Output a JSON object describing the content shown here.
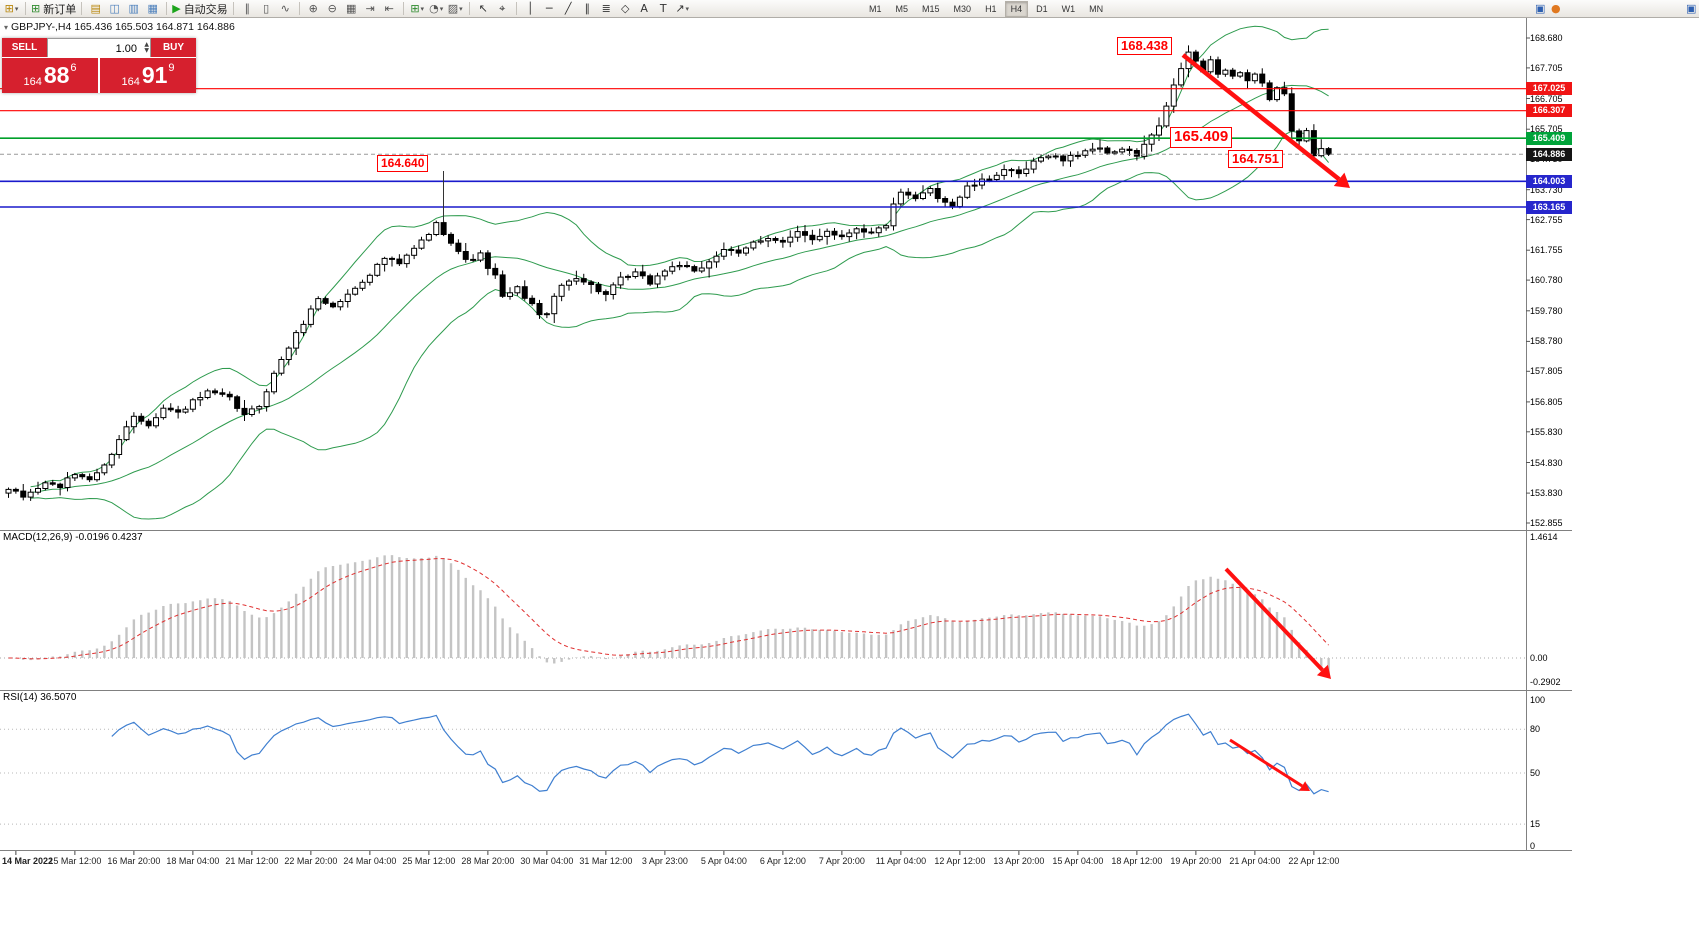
{
  "colors": {
    "one_click_red": "#d6202e",
    "annotation_red": "#ff0000",
    "level_red": "#ff0000",
    "level_green": "#00a02a",
    "level_blue": "#1a1acc",
    "bollinger_green": "#2e9b4e",
    "rsi_blue": "#3f7fd0",
    "macd_signal_red": "#e03030",
    "macd_histogram": "#c4c4c4",
    "arrow_red": "#ff1010",
    "tag_green": "#00a33a",
    "tag_blue": "#2626cc",
    "tag_red": "#f01414",
    "tag_black": "#141414"
  },
  "toolbar": {
    "groups": [
      {
        "items": [
          {
            "name": "new-chart",
            "glyph": "⊞",
            "color": "#b8860b",
            "caret": true
          }
        ]
      },
      {
        "items": [
          {
            "name": "new-order",
            "glyph": "⊞",
            "color": "#2e8b2e",
            "label": "新订单"
          }
        ]
      },
      {
        "items": [
          {
            "name": "market-watch",
            "glyph": "▤",
            "color": "#b8860b"
          },
          {
            "name": "data-window",
            "glyph": "◫",
            "color": "#4a7ebb"
          },
          {
            "name": "navigator",
            "glyph": "▥",
            "color": "#4a7ebb"
          },
          {
            "name": "terminal",
            "glyph": "▦",
            "color": "#4a7ebb"
          }
        ]
      },
      {
        "items": [
          {
            "name": "autotrading",
            "glyph": "▶",
            "color": "#1ca41c",
            "label": "自动交易"
          }
        ]
      },
      {
        "items": [
          {
            "name": "bar-chart",
            "glyph": "∥",
            "color": "#555555"
          },
          {
            "name": "candlestick-chart",
            "glyph": "▯",
            "color": "#555555"
          },
          {
            "name": "line-chart",
            "glyph": "∿",
            "color": "#555555"
          }
        ]
      },
      {
        "items": [
          {
            "name": "zoom-in",
            "glyph": "⊕",
            "color": "#555555"
          },
          {
            "name": "zoom-out",
            "glyph": "⊖",
            "color": "#555555"
          },
          {
            "name": "tile-windows",
            "glyph": "▦",
            "color": "#555555"
          },
          {
            "name": "auto-scroll",
            "glyph": "⇥",
            "color": "#555555"
          },
          {
            "name": "chart-shift",
            "glyph": "⇤",
            "color": "#555555"
          }
        ]
      },
      {
        "items": [
          {
            "name": "indicators",
            "glyph": "⊞",
            "color": "#2e8b2e",
            "caret": true
          },
          {
            "name": "periods",
            "glyph": "◔",
            "color": "#555555",
            "caret": true
          },
          {
            "name": "templates",
            "glyph": "▨",
            "color": "#555555",
            "caret": true
          }
        ]
      },
      {
        "items": [
          {
            "name": "cursor",
            "glyph": "↖",
            "color": "#333333"
          },
          {
            "name": "crosshair",
            "glyph": "⌖",
            "color": "#333333"
          }
        ]
      },
      {
        "items": [
          {
            "name": "vertical-line",
            "glyph": "│",
            "color": "#333333"
          },
          {
            "name": "horizontal-line",
            "glyph": "─",
            "color": "#333333"
          },
          {
            "name": "trendline",
            "glyph": "╱",
            "color": "#333333"
          },
          {
            "name": "equidistant-channel",
            "glyph": "∥",
            "color": "#333333"
          },
          {
            "name": "fibonacci-retracement",
            "glyph": "≣",
            "color": "#333333"
          },
          {
            "name": "shapes",
            "glyph": "◇",
            "color": "#333333"
          },
          {
            "name": "text",
            "glyph": "A",
            "color": "#333333"
          },
          {
            "name": "text-label",
            "glyph": "T",
            "color": "#333333"
          },
          {
            "name": "arrows",
            "glyph": "↗",
            "color": "#333333",
            "caret": true
          }
        ]
      }
    ],
    "timeframes": [
      "M1",
      "M5",
      "M15",
      "M30",
      "H1",
      "H4",
      "D1",
      "W1",
      "MN"
    ],
    "active_timeframe": "H4",
    "right_icons": [
      {
        "name": "metaeditor",
        "glyph": "▣",
        "color": "#2d5fb0"
      },
      {
        "name": "alert",
        "glyph": "●",
        "color": "#e07820"
      },
      {
        "name": "window-badge",
        "glyph": "▣",
        "color": "#2d5fb0"
      }
    ]
  },
  "symbol_bar": {
    "marker": "▾",
    "text": "GBPJPY-,H4 165.436 165.503 164.871 164.886"
  },
  "one_click": {
    "sell_label": "SELL",
    "buy_label": "BUY",
    "volume": "1.00",
    "sell_price_int": "164",
    "sell_price_big": "88",
    "sell_price_pip": "6",
    "buy_price_int": "164",
    "buy_price_big": "91",
    "buy_price_pip": "9"
  },
  "indicators": {
    "macd": {
      "label": "MACD(12,26,9)",
      "values": "-0.0196 0.4237",
      "axis": [
        "1.4614",
        "0.00",
        "-0.2902"
      ]
    },
    "rsi": {
      "label": "RSI(14)",
      "value": "36.5070",
      "axis": [
        "100",
        "80",
        "50",
        "15",
        "0"
      ],
      "levels": [
        80,
        50,
        15
      ]
    }
  },
  "chart_data": {
    "type": "candlestick",
    "symbol": "GBPJPY-",
    "timeframe": "H4",
    "current_bar_ohlc": {
      "open": 165.436,
      "high": 165.503,
      "low": 164.871,
      "close": 164.886
    },
    "ylim": [
      152.855,
      168.68
    ],
    "bars": 180,
    "last_close": 164.886,
    "peak": {
      "bar": 160,
      "high": 168.438
    },
    "price_anchors": [
      [
        0,
        153.95
      ],
      [
        2,
        153.7
      ],
      [
        5,
        154.15
      ],
      [
        7,
        154.05
      ],
      [
        9,
        154.45
      ],
      [
        11,
        154.3
      ],
      [
        13,
        154.7
      ],
      [
        15,
        155.6
      ],
      [
        17,
        156.35
      ],
      [
        19,
        156.1
      ],
      [
        21,
        156.6
      ],
      [
        23,
        156.45
      ],
      [
        25,
        156.8
      ],
      [
        27,
        157.1
      ],
      [
        29,
        157.0
      ],
      [
        30,
        156.9
      ],
      [
        32,
        156.35
      ],
      [
        34,
        156.7
      ],
      [
        35,
        157.2
      ],
      [
        37,
        158.2
      ],
      [
        39,
        159.0
      ],
      [
        41,
        159.8
      ],
      [
        42,
        160.2
      ],
      [
        44,
        159.9
      ],
      [
        46,
        160.3
      ],
      [
        49,
        161.0
      ],
      [
        51,
        161.5
      ],
      [
        53,
        161.3
      ],
      [
        55,
        161.8
      ],
      [
        57,
        162.3
      ],
      [
        58,
        162.6
      ],
      [
        59,
        162.35
      ],
      [
        60,
        162.05
      ],
      [
        62,
        161.4
      ],
      [
        64,
        161.6
      ],
      [
        65,
        161.2
      ],
      [
        66,
        160.9
      ],
      [
        67,
        160.2
      ],
      [
        69,
        160.5
      ],
      [
        71,
        160.0
      ],
      [
        72,
        159.6
      ],
      [
        73,
        159.75
      ],
      [
        75,
        160.6
      ],
      [
        77,
        160.9
      ],
      [
        79,
        160.6
      ],
      [
        81,
        160.3
      ],
      [
        83,
        160.8
      ],
      [
        85,
        161.0
      ],
      [
        87,
        160.7
      ],
      [
        89,
        161.1
      ],
      [
        91,
        161.3
      ],
      [
        93,
        161.0
      ],
      [
        95,
        161.4
      ],
      [
        97,
        161.8
      ],
      [
        99,
        161.6
      ],
      [
        101,
        162.0
      ],
      [
        103,
        162.2
      ],
      [
        105,
        162.0
      ],
      [
        107,
        162.3
      ],
      [
        109,
        162.1
      ],
      [
        111,
        162.4
      ],
      [
        113,
        162.2
      ],
      [
        115,
        162.5
      ],
      [
        117,
        162.3
      ],
      [
        119,
        162.6
      ],
      [
        120,
        163.2
      ],
      [
        121,
        163.6
      ],
      [
        123,
        163.4
      ],
      [
        125,
        163.8
      ],
      [
        126,
        163.5
      ],
      [
        128,
        163.2
      ],
      [
        130,
        163.8
      ],
      [
        133,
        164.1
      ],
      [
        135,
        164.4
      ],
      [
        137,
        164.2
      ],
      [
        139,
        164.6
      ],
      [
        141,
        164.9
      ],
      [
        143,
        164.7
      ],
      [
        145,
        164.9
      ],
      [
        147,
        165.1
      ],
      [
        149,
        164.95
      ],
      [
        151,
        165.05
      ],
      [
        153,
        164.85
      ],
      [
        155,
        165.5
      ],
      [
        156,
        165.8
      ],
      [
        157,
        166.4
      ],
      [
        158,
        167.1
      ],
      [
        159,
        167.7
      ],
      [
        160,
        168.2
      ],
      [
        161,
        167.9
      ],
      [
        162,
        167.6
      ],
      [
        163,
        167.9
      ],
      [
        164,
        167.5
      ],
      [
        165,
        167.7
      ],
      [
        166,
        167.4
      ],
      [
        167,
        167.6
      ],
      [
        168,
        167.3
      ],
      [
        169,
        167.5
      ],
      [
        170,
        167.2
      ],
      [
        171,
        166.6
      ],
      [
        172,
        167.0
      ],
      [
        173,
        166.8
      ],
      [
        174,
        165.7
      ],
      [
        175,
        165.3
      ],
      [
        176,
        165.6
      ],
      [
        177,
        164.9
      ],
      [
        178,
        165.15
      ],
      [
        179,
        164.886
      ]
    ],
    "price_axis_labels": [
      "168.680",
      "167.705",
      "166.705",
      "165.705",
      "164.730",
      "163.730",
      "162.755",
      "161.755",
      "160.780",
      "159.780",
      "158.780",
      "157.805",
      "156.805",
      "155.830",
      "154.830",
      "153.830",
      "152.855"
    ],
    "price_tags": [
      {
        "text": "167.025",
        "color": "#f01414"
      },
      {
        "text": "166.307",
        "color": "#f01414"
      },
      {
        "text": "165.409",
        "color": "#00a33a"
      },
      {
        "text": "164.886",
        "color": "#141414"
      },
      {
        "text": "164.003",
        "color": "#2626cc"
      },
      {
        "text": "163.165",
        "color": "#2626cc"
      }
    ],
    "levels": [
      {
        "price": 167.025,
        "color": "#ff0000",
        "width": 1.2
      },
      {
        "price": 166.307,
        "color": "#ff0000",
        "width": 1.2
      },
      {
        "price": 165.409,
        "color": "#00a02a",
        "width": 1.6
      },
      {
        "price": 164.886,
        "color": "#999999",
        "width": 1,
        "dash": true
      },
      {
        "price": 164.003,
        "color": "#1a1acc",
        "width": 1.6
      },
      {
        "price": 163.165,
        "color": "#1a1acc",
        "width": 1.6
      }
    ],
    "annotations": {
      "high": "168.438",
      "level_mid": "165.409",
      "level_low": "164.751",
      "march_high": "164.640"
    },
    "bollinger": {
      "period": 20,
      "deviation": 2,
      "color": "#2e9b4e"
    },
    "time_labels": [
      "14 Mar 2022",
      "15 Mar 12:00",
      "16 Mar 20:00",
      "18 Mar 04:00",
      "21 Mar 12:00",
      "22 Mar 20:00",
      "24 Mar 04:00",
      "25 Mar 12:00",
      "28 Mar 20:00",
      "30 Mar 04:00",
      "31 Mar 12:00",
      "3 Apr 23:00",
      "5 Apr 04:00",
      "6 Apr 12:00",
      "7 Apr 20:00",
      "11 Apr 04:00",
      "12 Apr 12:00",
      "13 Apr 20:00",
      "15 Apr 04:00",
      "18 Apr 12:00",
      "19 Apr 20:00",
      "21 Apr 04:00",
      "22 Apr 12:00"
    ]
  }
}
